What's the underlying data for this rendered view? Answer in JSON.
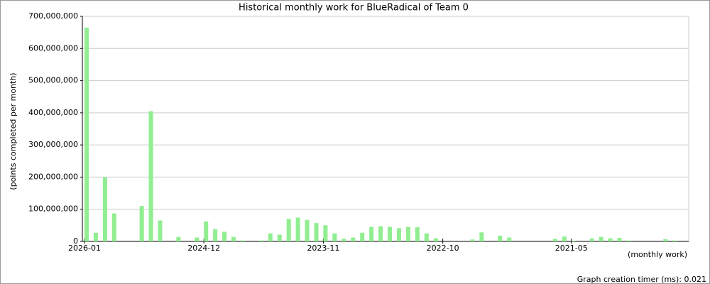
{
  "chart_data": {
    "type": "bar",
    "title": "Historical monthly work for BlueRadical of Team 0",
    "y_label": "(points completed per month)",
    "x_label": "(monthly work)",
    "categories": [
      "2026-01",
      null,
      null,
      null,
      null,
      null,
      null,
      null,
      null,
      null,
      null,
      null,
      null,
      "2024-12",
      null,
      null,
      null,
      null,
      null,
      null,
      null,
      null,
      null,
      null,
      null,
      null,
      "2023-11",
      null,
      null,
      null,
      null,
      null,
      null,
      null,
      null,
      null,
      null,
      null,
      null,
      "2022-10",
      null,
      null,
      null,
      null,
      null,
      null,
      null,
      null,
      null,
      null,
      null,
      null,
      null,
      "2021-05",
      null,
      null,
      null,
      null,
      null,
      null,
      null,
      null,
      null,
      null,
      null,
      null
    ],
    "values": [
      665000000,
      27000000,
      200000000,
      87000000,
      0,
      0,
      110000000,
      405000000,
      65000000,
      0,
      14000000,
      0,
      12000000,
      62000000,
      38000000,
      30000000,
      14000000,
      3000000,
      0,
      3000000,
      25000000,
      21000000,
      70000000,
      74000000,
      67000000,
      57000000,
      50000000,
      25000000,
      8000000,
      12000000,
      27000000,
      45000000,
      47000000,
      45000000,
      41000000,
      45000000,
      44000000,
      25000000,
      10000000,
      0,
      0,
      0,
      6000000,
      28000000,
      0,
      18000000,
      12000000,
      0,
      0,
      0,
      0,
      8000000,
      15000000,
      2000000,
      0,
      9000000,
      14000000,
      10000000,
      11000000,
      3000000,
      0,
      0,
      0,
      7000000,
      3000000,
      0
    ],
    "color": "#90ee90",
    "ylim": [
      0,
      700000000
    ],
    "yticks": [
      0,
      {
        "value": 100000000,
        "label": "100,000,000"
      },
      {
        "value": 200000000,
        "label": "200,000,000"
      },
      {
        "value": 300000000,
        "label": "300,000,000"
      },
      {
        "value": 400000000,
        "label": "400,000,000"
      },
      {
        "value": 500000000,
        "label": "500,000,000"
      },
      {
        "value": 600000000,
        "label": "600,000,000"
      },
      {
        "value": 700000000,
        "label": "700,000,000"
      }
    ],
    "grid": true
  },
  "footer": "Graph creation timer (ms): 0.021"
}
